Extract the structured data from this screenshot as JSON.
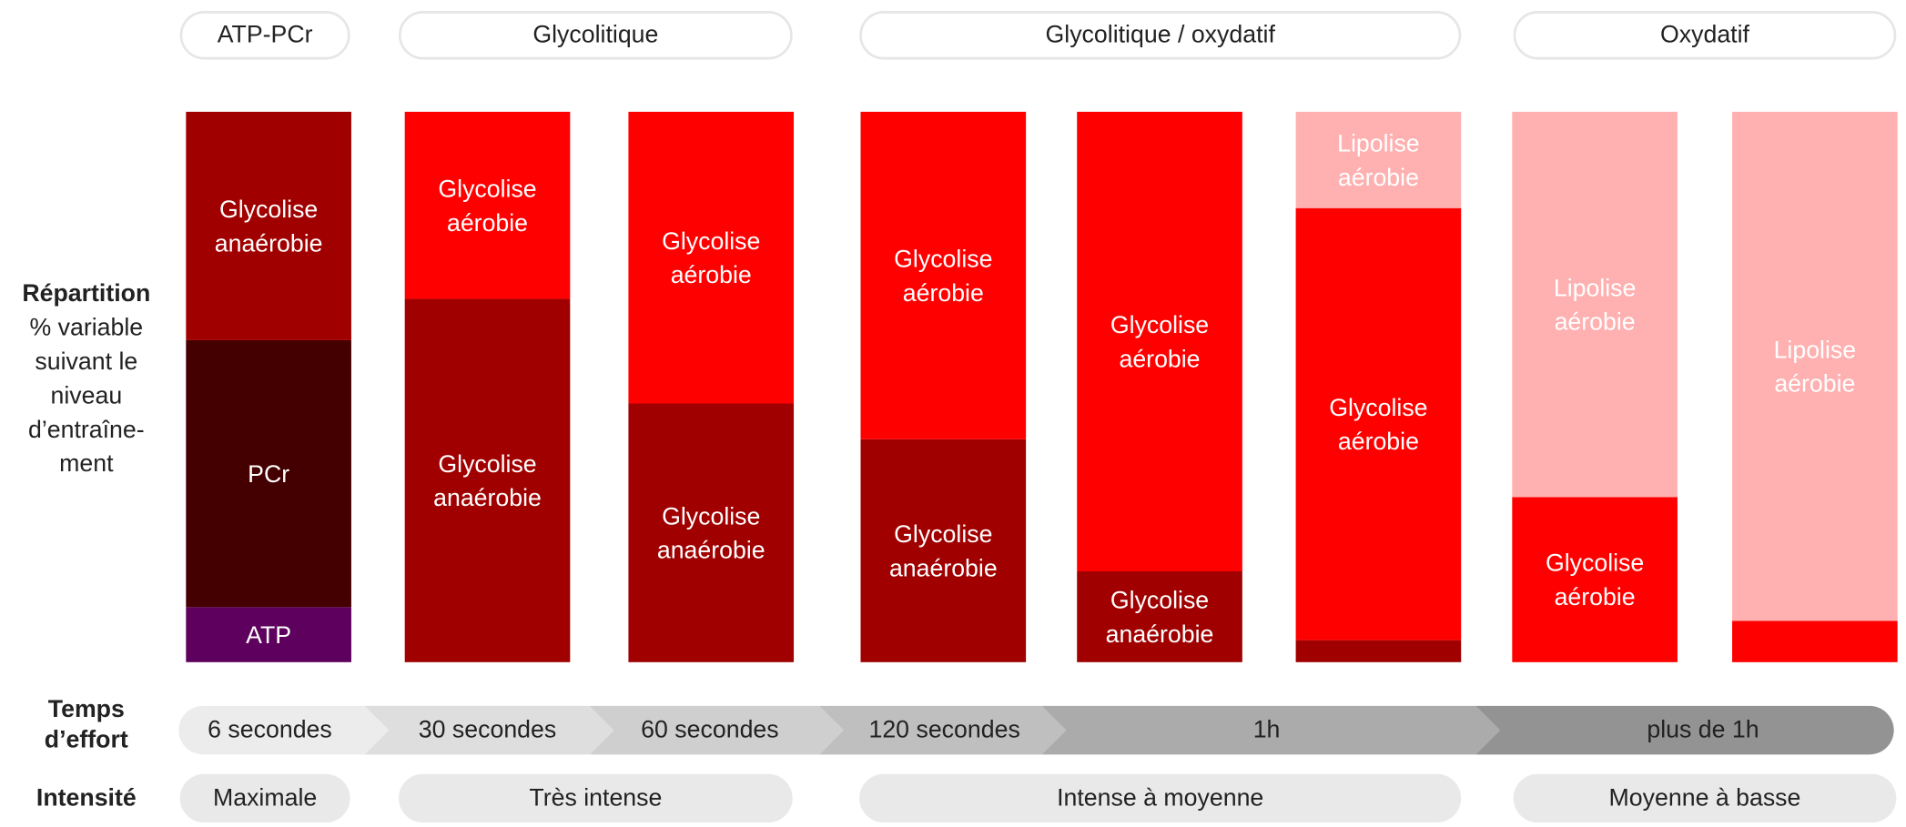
{
  "phases": [
    {
      "label": "ATP-PCr"
    },
    {
      "label": "Glycolitique"
    },
    {
      "label": "Glycolitique / oxydatif"
    },
    {
      "label": "Oxydatif"
    }
  ],
  "rows": {
    "repartition": {
      "title": "Répartition",
      "lines": [
        "% variable",
        "suivant le",
        "niveau",
        "d’entraîne-",
        "ment"
      ]
    },
    "temps": {
      "title": [
        "Temps",
        "d’effort"
      ]
    },
    "intensite": {
      "title": "Intensité"
    }
  },
  "timeline": [
    {
      "label": "6 secondes"
    },
    {
      "label": "30 secondes"
    },
    {
      "label": "60 secondes"
    },
    {
      "label": "120 secondes"
    },
    {
      "label": "1h"
    },
    {
      "label": "plus de 1h"
    }
  ],
  "intensities": [
    {
      "label": "Maximale"
    },
    {
      "label": "Très intense"
    },
    {
      "label": "Intense à moyenne"
    },
    {
      "label": "Moyenne à basse"
    }
  ],
  "colors": {
    "ATP": "#5e005e",
    "PCr": "#440000",
    "Glycolise anaérobie": "#a00000",
    "Glycolise aérobie": "#ff0000",
    "Lipolise aérobie": "#ffb0b0"
  },
  "chart_data": {
    "type": "bar",
    "stacked": true,
    "unit": "%",
    "categories": [
      "6 secondes",
      "30 secondes",
      "60 secondes",
      "120 secondes",
      "1h",
      "1h",
      "plus de 1h",
      "plus de 1h"
    ],
    "series": [
      {
        "name": "ATP",
        "label": "ATP",
        "values": [
          10,
          0,
          0,
          0,
          0,
          0,
          0,
          0
        ]
      },
      {
        "name": "PCr",
        "label": "PCr",
        "values": [
          48.5,
          0,
          0,
          0,
          0,
          0,
          0,
          0
        ]
      },
      {
        "name": "Glycolise anaérobie",
        "label": "Glycolise anaérobie",
        "values": [
          41.5,
          66,
          47,
          40.5,
          16.5,
          4,
          0,
          0
        ]
      },
      {
        "name": "Glycolise aérobie",
        "label": "Glycolise aérobie",
        "values": [
          0,
          34,
          53,
          59.5,
          83.5,
          78.5,
          30,
          7.5
        ]
      },
      {
        "name": "Lipolise aérobie",
        "label": "Lipolise aérobie",
        "values": [
          0,
          0,
          0,
          0,
          0,
          17.5,
          70,
          92.5
        ]
      }
    ],
    "ylim": [
      0,
      100
    ]
  }
}
